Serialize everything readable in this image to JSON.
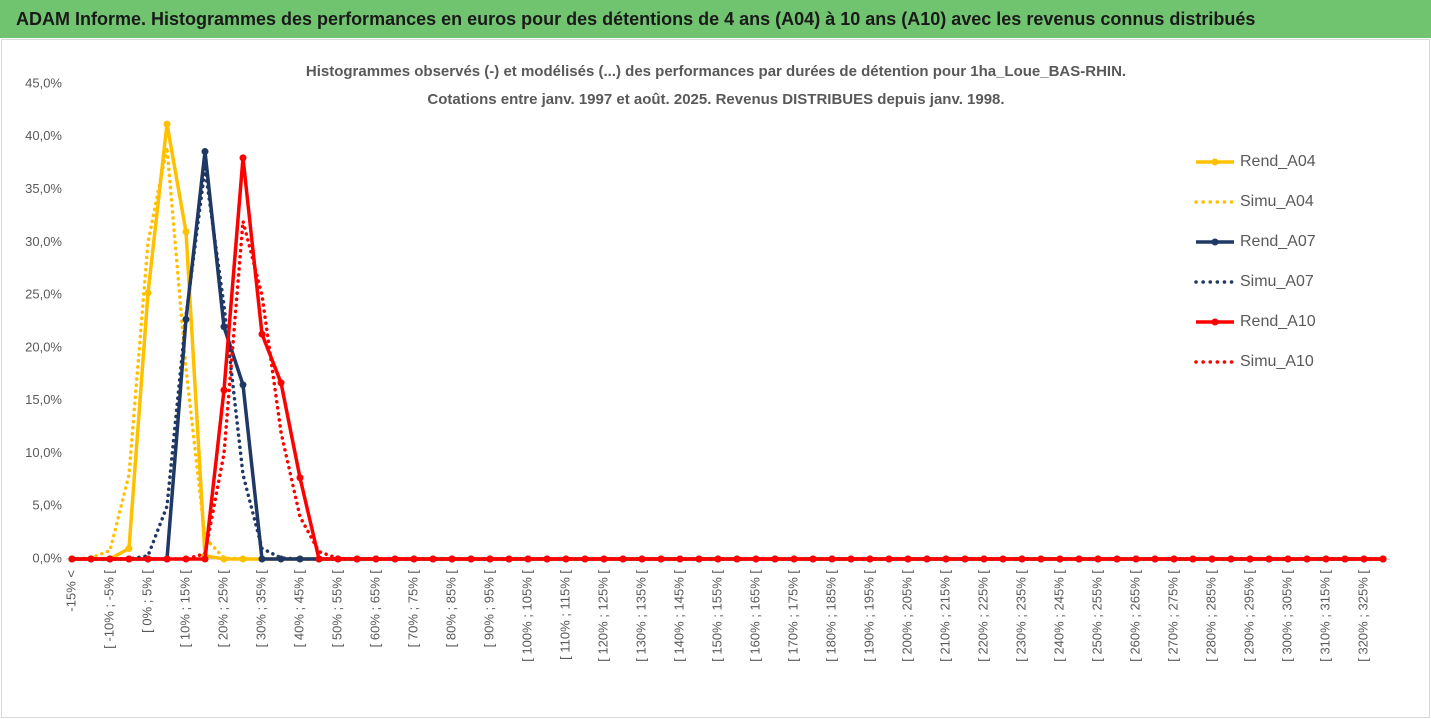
{
  "header": {
    "title": "ADAM Informe. Histogrammes des performances en euros pour des détentions de 4 ans (A04) à 10 ans (A10) avec les revenus connus distribués"
  },
  "chart_data": {
    "type": "line",
    "title": "Histogrammes observés (-) et modélisés (...) des performances par durées de détention pour 1ha_Loue_BAS-RHIN.",
    "subtitle": "Cotations entre janv. 1997 et août. 2025. Revenus DISTRIBUES depuis janv. 1998.",
    "categories": [
      "-15% <",
      null,
      "[ -10% ; -5% [",
      null,
      "[ 0% ; 5% [",
      null,
      "[ 10% ; 15% [",
      null,
      "[ 20% ; 25% [",
      null,
      "[ 30% ; 35% [",
      null,
      "[ 40% ; 45% [",
      null,
      "[ 50% ; 55% [",
      null,
      "[ 60% ; 65% [",
      null,
      "[ 70% ; 75% [",
      null,
      "[ 80% ; 85% [",
      null,
      "[ 90% ; 95% [",
      null,
      "[ 100% ; 105% [",
      null,
      "[ 110% ; 115% [",
      null,
      "[ 120% ; 125% [",
      null,
      "[ 130% ; 135% [",
      null,
      "[ 140% ; 145% [",
      null,
      "[ 150% ; 155% [",
      null,
      "[ 160% ; 165% [",
      null,
      "[ 170% ; 175% [",
      null,
      "[ 180% ; 185% [",
      null,
      "[ 190% ; 195% [",
      null,
      "[ 200% ; 205% [",
      null,
      "[ 210% ; 215% [",
      null,
      "[ 220% ; 225% [",
      null,
      "[ 230% ; 235% [",
      null,
      "[ 240% ; 245% [",
      null,
      "[ 250% ; 255% [",
      null,
      "[ 260% ; 265% [",
      null,
      "[ 270% ; 275% [",
      null,
      "[ 280% ; 285% [",
      null,
      "[ 290% ; 295% [",
      null,
      "[ 300% ; 305% [",
      null,
      "[ 310% ; 315% [",
      null,
      "[ 320% ; 325% [",
      null
    ],
    "series": [
      {
        "name": "Rend_A04",
        "color": "#ffc000",
        "line_style": "solid",
        "markers": true,
        "values": [
          0,
          0,
          0,
          1.0,
          25.2,
          41.2,
          31,
          0.3,
          0,
          0,
          0,
          0,
          0,
          0,
          0,
          0,
          0,
          0,
          0,
          0,
          0,
          0,
          0,
          0,
          0,
          0,
          0,
          0,
          0,
          0,
          0,
          0,
          0,
          0,
          0,
          0,
          0,
          0,
          0,
          0,
          0,
          0,
          0,
          0,
          0,
          0,
          0,
          0,
          0,
          0,
          0,
          0,
          0,
          0,
          0,
          0,
          0,
          0,
          0,
          0,
          0,
          0,
          0,
          0,
          0,
          0,
          0,
          0,
          0,
          0
        ]
      },
      {
        "name": "Simu_A04",
        "color": "#ffc000",
        "line_style": "dotted",
        "markers": false,
        "values": [
          0,
          0.1,
          0.8,
          8,
          30,
          39,
          18,
          2,
          0.1,
          0,
          0,
          0,
          0,
          0,
          0,
          0,
          0,
          0,
          0,
          0,
          0,
          0,
          0,
          0,
          0,
          0,
          0,
          0,
          0,
          0,
          0,
          0,
          0,
          0,
          0,
          0,
          0,
          0,
          0,
          0,
          0,
          0,
          0,
          0,
          0,
          0,
          0,
          0,
          0,
          0,
          0,
          0,
          0,
          0,
          0,
          0,
          0,
          0,
          0,
          0,
          0,
          0,
          0,
          0,
          0,
          0,
          0,
          0,
          0,
          0
        ]
      },
      {
        "name": "Rend_A07",
        "color": "#1f3864",
        "line_style": "solid",
        "markers": true,
        "values": [
          0,
          0,
          0,
          0,
          0,
          0,
          22.7,
          38.6,
          22,
          16.5,
          0,
          0,
          0,
          0,
          0,
          0,
          0,
          0,
          0,
          0,
          0,
          0,
          0,
          0,
          0,
          0,
          0,
          0,
          0,
          0,
          0,
          0,
          0,
          0,
          0,
          0,
          0,
          0,
          0,
          0,
          0,
          0,
          0,
          0,
          0,
          0,
          0,
          0,
          0,
          0,
          0,
          0,
          0,
          0,
          0,
          0,
          0,
          0,
          0,
          0,
          0,
          0,
          0,
          0,
          0,
          0,
          0,
          0,
          0,
          0
        ]
      },
      {
        "name": "Simu_A07",
        "color": "#1f3864",
        "line_style": "dotted",
        "markers": false,
        "values": [
          0,
          0,
          0,
          0,
          0.3,
          5,
          23,
          37,
          24,
          8,
          1,
          0.1,
          0,
          0,
          0,
          0,
          0,
          0,
          0,
          0,
          0,
          0,
          0,
          0,
          0,
          0,
          0,
          0,
          0,
          0,
          0,
          0,
          0,
          0,
          0,
          0,
          0,
          0,
          0,
          0,
          0,
          0,
          0,
          0,
          0,
          0,
          0,
          0,
          0,
          0,
          0,
          0,
          0,
          0,
          0,
          0,
          0,
          0,
          0,
          0,
          0,
          0,
          0,
          0,
          0,
          0,
          0,
          0,
          0,
          0
        ]
      },
      {
        "name": "Rend_A10",
        "color": "#ff0000",
        "line_style": "solid",
        "markers": true,
        "values": [
          0,
          0,
          0,
          0,
          0,
          0,
          0,
          0,
          16,
          38,
          21.3,
          16.7,
          7.7,
          0,
          0,
          0,
          0,
          0,
          0,
          0,
          0,
          0,
          0,
          0,
          0,
          0,
          0,
          0,
          0,
          0,
          0,
          0,
          0,
          0,
          0,
          0,
          0,
          0,
          0,
          0,
          0,
          0,
          0,
          0,
          0,
          0,
          0,
          0,
          0,
          0,
          0,
          0,
          0,
          0,
          0,
          0,
          0,
          0,
          0,
          0,
          0,
          0,
          0,
          0,
          0,
          0,
          0,
          0,
          0,
          0
        ]
      },
      {
        "name": "Simu_A10",
        "color": "#ff0000",
        "line_style": "dotted",
        "markers": false,
        "values": [
          0,
          0,
          0,
          0,
          0,
          0,
          0,
          0.5,
          10,
          32,
          25,
          12,
          4,
          0.7,
          0.05,
          0,
          0,
          0,
          0,
          0,
          0,
          0,
          0,
          0,
          0,
          0,
          0,
          0,
          0,
          0,
          0,
          0,
          0,
          0,
          0,
          0,
          0,
          0,
          0,
          0,
          0,
          0,
          0,
          0,
          0,
          0,
          0,
          0,
          0,
          0,
          0,
          0,
          0,
          0,
          0,
          0,
          0,
          0,
          0,
          0,
          0,
          0,
          0,
          0,
          0,
          0,
          0,
          0,
          0,
          0
        ]
      }
    ],
    "ylim": [
      0,
      45
    ],
    "yticks": [
      {
        "value": 0,
        "label": "0,0%"
      },
      {
        "value": 5,
        "label": "5,0%"
      },
      {
        "value": 10,
        "label": "10,0%"
      },
      {
        "value": 15,
        "label": "15,0%"
      },
      {
        "value": 20,
        "label": "20,0%"
      },
      {
        "value": 25,
        "label": "25,0%"
      },
      {
        "value": 30,
        "label": "30,0%"
      },
      {
        "value": 35,
        "label": "35,0%"
      },
      {
        "value": 40,
        "label": "40,0%"
      },
      {
        "value": 45,
        "label": "45,0%"
      }
    ],
    "grid": false,
    "legend": "right"
  }
}
